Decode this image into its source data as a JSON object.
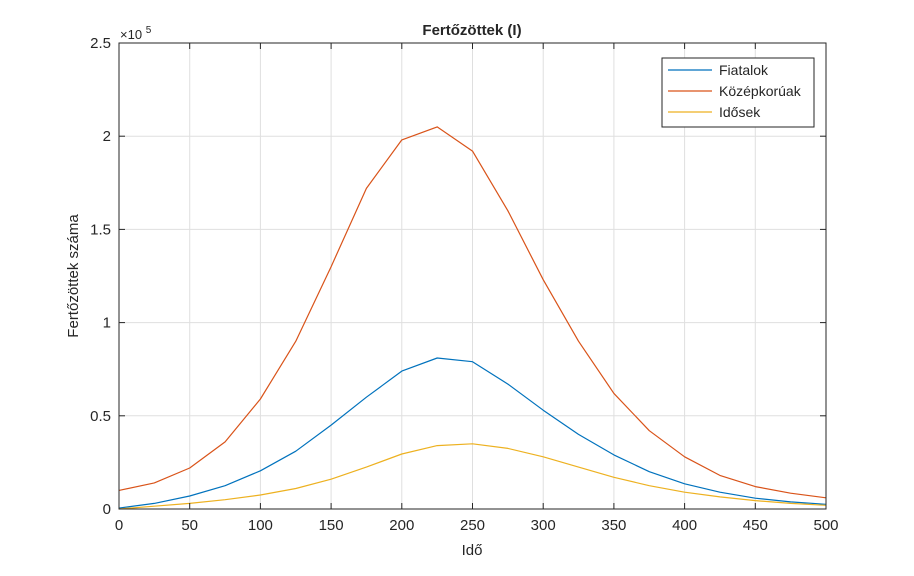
{
  "chart_data": {
    "type": "line",
    "title": "Fertőzöttek (I)",
    "xlabel": "Idő",
    "ylabel": "Fertőzöttek száma",
    "exponent_label": "×10",
    "exponent_power": "5",
    "xlim": [
      0,
      500
    ],
    "ylim": [
      0,
      250000
    ],
    "x_ticks": [
      0,
      50,
      100,
      150,
      200,
      250,
      300,
      350,
      400,
      450,
      500
    ],
    "x_tick_labels": [
      "0",
      "50",
      "100",
      "150",
      "200",
      "250",
      "300",
      "350",
      "400",
      "450",
      "500"
    ],
    "y_ticks": [
      0,
      50000,
      100000,
      150000,
      200000,
      250000
    ],
    "y_tick_labels": [
      "0",
      "0.5",
      "1",
      "1.5",
      "2",
      "2.5"
    ],
    "grid": true,
    "legend_position": "top-right",
    "x": [
      0,
      25,
      50,
      75,
      100,
      125,
      150,
      175,
      200,
      225,
      250,
      275,
      300,
      325,
      350,
      375,
      400,
      425,
      450,
      475,
      500
    ],
    "series": [
      {
        "name": "Fiatalok",
        "color": "#0072BD",
        "values": [
          500,
          3000,
          7000,
          12500,
          20500,
          31000,
          45000,
          60000,
          74000,
          81000,
          79000,
          67000,
          53000,
          40000,
          29000,
          20000,
          13500,
          9000,
          5800,
          3800,
          2500
        ]
      },
      {
        "name": "Középkorúak",
        "color": "#D95319",
        "values": [
          10000,
          14000,
          22000,
          36000,
          59000,
          90000,
          130000,
          172000,
          198000,
          205000,
          192000,
          160000,
          123000,
          90000,
          62000,
          42000,
          28000,
          18000,
          12000,
          8500,
          6000
        ]
      },
      {
        "name": "Idősek",
        "color": "#EDB120",
        "values": [
          0,
          1500,
          3000,
          5000,
          7500,
          11000,
          16000,
          22500,
          29500,
          34000,
          35000,
          32500,
          28000,
          22500,
          17000,
          12500,
          9000,
          6500,
          4500,
          3000,
          2000
        ]
      }
    ]
  }
}
